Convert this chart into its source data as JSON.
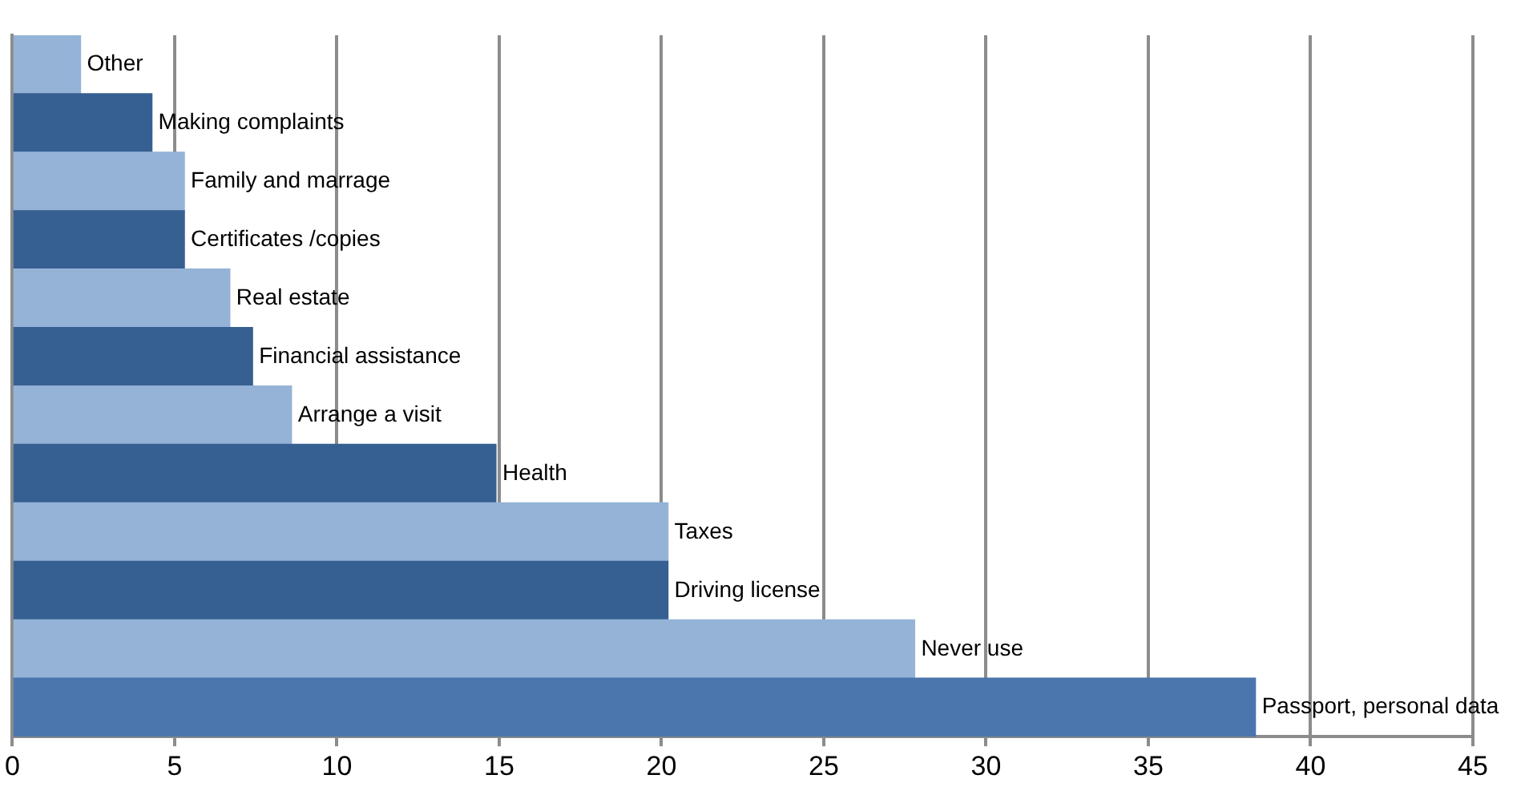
{
  "chart_data": {
    "type": "bar",
    "orientation": "horizontal",
    "categories": [
      "Other",
      "Making complaints",
      "Family and marrage",
      "Certificates /copies",
      "Real estate",
      "Financial assistance",
      "Arrange a visit",
      "Health",
      "Taxes",
      "Driving license",
      "Never use",
      "Passport, personal data"
    ],
    "values": [
      2.1,
      4.3,
      5.3,
      5.3,
      6.7,
      7.4,
      8.6,
      14.9,
      20.2,
      20.2,
      27.8,
      38.3
    ],
    "colors": [
      "#95b3d7",
      "#376092",
      "#95b3d7",
      "#376092",
      "#95b3d7",
      "#376092",
      "#95b3d7",
      "#376092",
      "#95b3d7",
      "#376092",
      "#95b3d7",
      "#4a76ad"
    ],
    "xlim": [
      0,
      45
    ],
    "xticks": [
      0,
      5,
      10,
      15,
      20,
      25,
      30,
      35,
      40,
      45
    ],
    "grid": "x",
    "tick_labels": "x",
    "legend": false
  }
}
